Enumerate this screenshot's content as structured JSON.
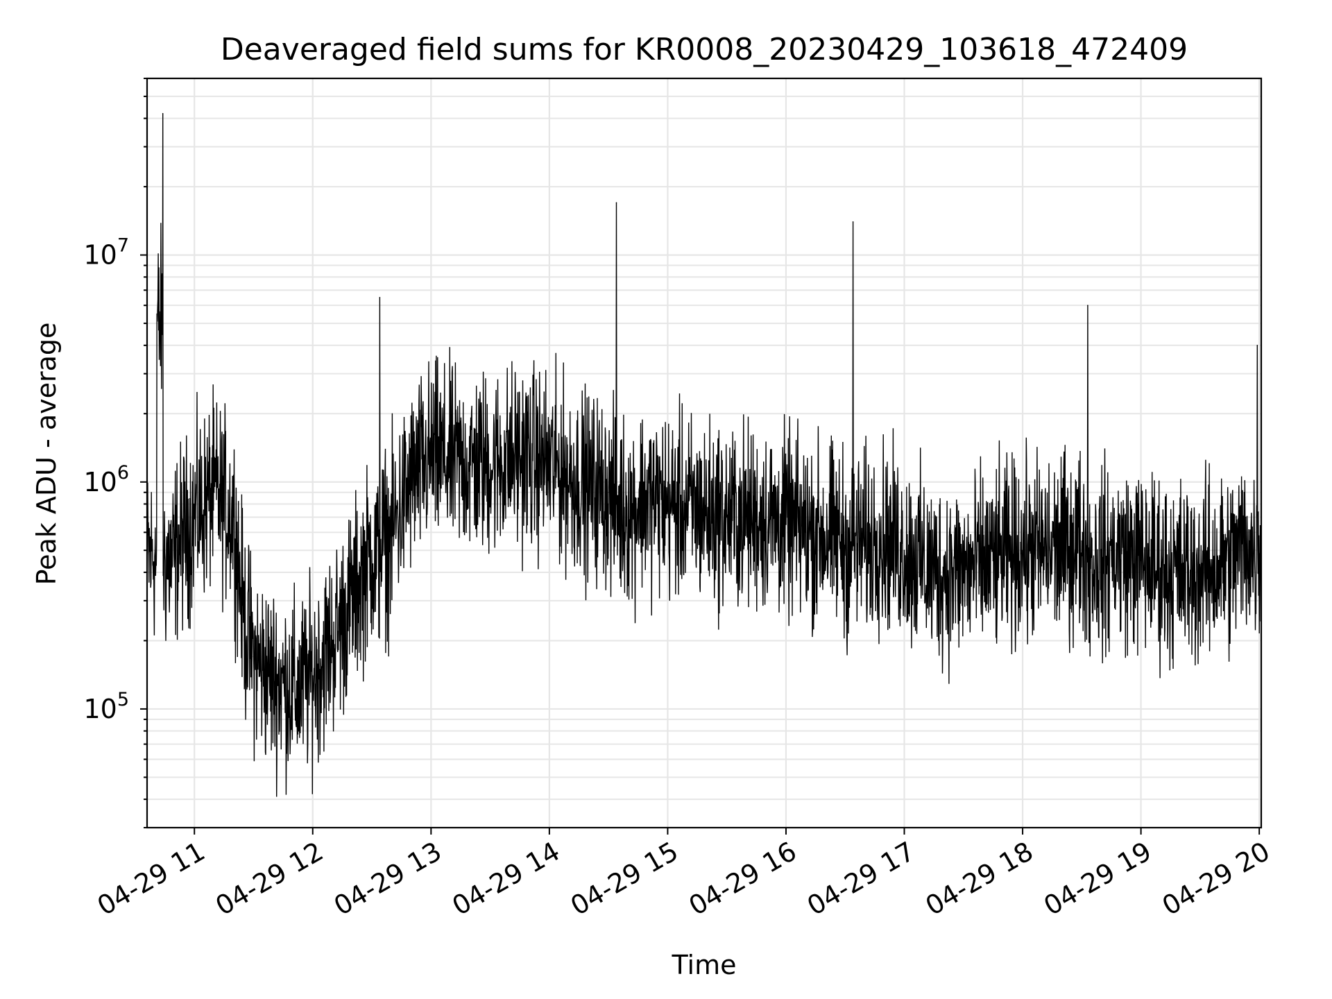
{
  "chart_data": {
    "type": "line",
    "title": "Deaveraged field sums for KR0008_20230429_103618_472409",
    "xlabel": "Time",
    "ylabel": "Peak ADU - average",
    "y_scale": "log",
    "ylim": [
      30000,
      60000000
    ],
    "xlim": [
      "2023-04-29 10:36",
      "2023-04-29 20:01"
    ],
    "grid": true,
    "legend": "none",
    "line_color": "#000000",
    "grid_color": "#e6e6e6",
    "x_ticks": [
      "04-29 11",
      "04-29 12",
      "04-29 13",
      "04-29 14",
      "04-29 15",
      "04-29 16",
      "04-29 17",
      "04-29 18",
      "04-29 19",
      "04-29 20"
    ],
    "y_ticks": [
      {
        "base": "10",
        "exp": "5",
        "value": 100000
      },
      {
        "base": "10",
        "exp": "6",
        "value": 1000000
      },
      {
        "base": "10",
        "exp": "7",
        "value": 10000000
      }
    ],
    "series": [
      {
        "x": [
          "2023-04-29 10:36",
          "2023-04-29 10:40",
          "2023-04-29 10:41",
          "2023-04-29 10:44",
          "2023-04-29 10:50",
          "2023-04-29 11:00",
          "2023-04-29 11:10",
          "2023-04-29 11:20",
          "2023-04-29 11:25",
          "2023-04-29 11:30",
          "2023-04-29 11:38",
          "2023-04-29 11:45",
          "2023-04-29 11:52",
          "2023-04-29 12:00",
          "2023-04-29 12:10",
          "2023-04-29 12:20",
          "2023-04-29 12:30",
          "2023-04-29 12:34",
          "2023-04-29 12:40",
          "2023-04-29 12:50",
          "2023-04-29 13:00",
          "2023-04-29 13:15",
          "2023-04-29 13:30",
          "2023-04-29 13:45",
          "2023-04-29 14:00",
          "2023-04-29 14:15",
          "2023-04-29 14:30",
          "2023-04-29 14:34",
          "2023-04-29 14:45",
          "2023-04-29 15:00",
          "2023-04-29 15:15",
          "2023-04-29 15:30",
          "2023-04-29 15:45",
          "2023-04-29 16:00",
          "2023-04-29 16:15",
          "2023-04-29 16:30",
          "2023-04-29 16:34",
          "2023-04-29 16:45",
          "2023-04-29 17:00",
          "2023-04-29 17:15",
          "2023-04-29 17:30",
          "2023-04-29 17:45",
          "2023-04-29 18:00",
          "2023-04-29 18:15",
          "2023-04-29 18:30",
          "2023-04-29 18:33",
          "2023-04-29 18:45",
          "2023-04-29 19:00",
          "2023-04-29 19:15",
          "2023-04-29 19:30",
          "2023-04-29 19:45",
          "2023-04-29 19:55",
          "2023-04-29 19:59",
          "2023-04-29 20:01"
        ],
        "values": [
          450000,
          500000,
          5500000,
          42000000,
          500000,
          700000,
          900000,
          700000,
          250000,
          170000,
          140000,
          130000,
          120000,
          140000,
          200000,
          300000,
          500000,
          6500000,
          600000,
          1000000,
          1300000,
          1200000,
          1200000,
          1300000,
          1200000,
          1000000,
          900000,
          17000000,
          850000,
          800000,
          750000,
          700000,
          700000,
          650000,
          600000,
          550000,
          14000000,
          600000,
          500000,
          400000,
          400000,
          450000,
          500000,
          500000,
          550000,
          6000000,
          500000,
          450000,
          400000,
          400000,
          450000,
          550000,
          4000000,
          600000
        ]
      }
    ]
  }
}
